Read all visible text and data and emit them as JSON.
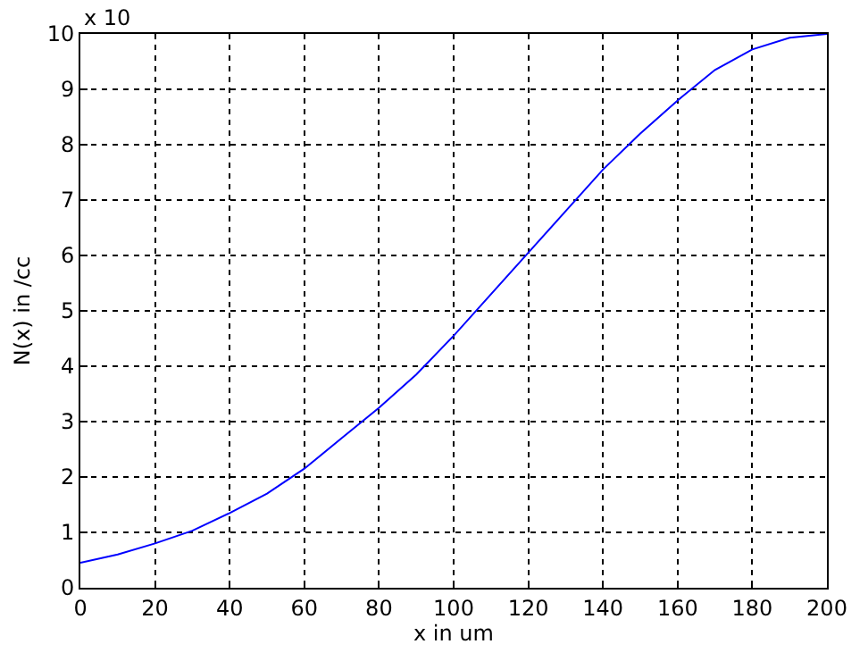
{
  "chart_data": {
    "type": "line",
    "xlabel": "x in um",
    "ylabel": "N(x) in /cc",
    "annotations": [
      "x 10"
    ],
    "x": [
      0,
      10,
      20,
      30,
      40,
      50,
      60,
      70,
      80,
      90,
      100,
      110,
      120,
      130,
      140,
      150,
      160,
      170,
      180,
      190,
      200
    ],
    "series": [
      {
        "color": "#0000ff",
        "values": [
          0.45,
          0.6,
          0.8,
          1.03,
          1.35,
          1.7,
          2.15,
          2.7,
          3.25,
          3.85,
          4.55,
          5.3,
          6.05,
          6.8,
          7.55,
          8.2,
          8.8,
          9.35,
          9.72,
          9.93,
          10
        ]
      }
    ],
    "xlim": [
      0,
      200
    ],
    "xticks": [
      0,
      20,
      40,
      60,
      80,
      100,
      120,
      140,
      160,
      180,
      200
    ],
    "ylim": [
      0,
      10
    ],
    "yticks": [
      0,
      1,
      2,
      3,
      4,
      5,
      6,
      7,
      8,
      9,
      10
    ],
    "grid": true,
    "marker": "none",
    "line_style": "solid"
  }
}
